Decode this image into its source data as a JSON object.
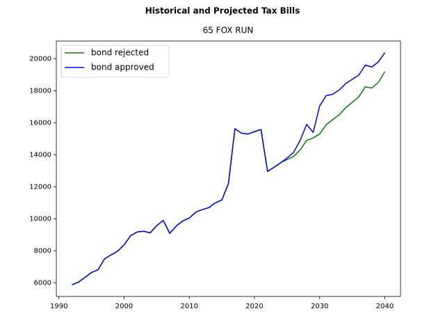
{
  "chart_data": {
    "type": "line",
    "title": "Historical and Projected Tax Bills",
    "subtitle": "65 FOX RUN",
    "x": [
      1992,
      1993,
      1994,
      1995,
      1996,
      1997,
      1998,
      1999,
      2000,
      2001,
      2002,
      2003,
      2004,
      2005,
      2006,
      2007,
      2008,
      2009,
      2010,
      2011,
      2012,
      2013,
      2014,
      2015,
      2016,
      2017,
      2018,
      2019,
      2020,
      2021,
      2022,
      2023,
      2024,
      2025,
      2026,
      2027,
      2028,
      2029,
      2030,
      2031,
      2032,
      2033,
      2034,
      2035,
      2036,
      2037,
      2038,
      2039,
      2040
    ],
    "series": [
      {
        "name": "bond rejected",
        "color": "#008000",
        "values": [
          5880,
          6050,
          6350,
          6650,
          6820,
          7500,
          7750,
          7980,
          8380,
          8950,
          9180,
          9230,
          9120,
          9580,
          9900,
          9100,
          9550,
          9870,
          10050,
          10420,
          10580,
          10700,
          11000,
          11180,
          12200,
          15630,
          15350,
          15300,
          15450,
          15580,
          12960,
          13220,
          13500,
          13700,
          13900,
          14300,
          14900,
          15050,
          15300,
          15880,
          16200,
          16500,
          16950,
          17280,
          17620,
          18250,
          18170,
          18520,
          19200
        ]
      },
      {
        "name": "bond approved",
        "color": "#0000ff",
        "values": [
          5880,
          6050,
          6350,
          6650,
          6820,
          7500,
          7750,
          7980,
          8380,
          8950,
          9180,
          9230,
          9120,
          9580,
          9900,
          9100,
          9550,
          9870,
          10050,
          10420,
          10580,
          10700,
          11000,
          11180,
          12200,
          15630,
          15350,
          15300,
          15450,
          15580,
          12960,
          13220,
          13500,
          13800,
          14150,
          14900,
          15900,
          15400,
          17050,
          17700,
          17780,
          18050,
          18450,
          18720,
          18980,
          19600,
          19480,
          19800,
          20380
        ]
      }
    ],
    "xlim": [
      1989.6,
      2042.4
    ],
    "xticks": [
      1990,
      2000,
      2010,
      2020,
      2030,
      2040
    ],
    "ylim": [
      5155,
      21105
    ],
    "yticks": [
      6000,
      8000,
      10000,
      12000,
      14000,
      16000,
      18000,
      20000
    ],
    "legend": "upper left"
  }
}
